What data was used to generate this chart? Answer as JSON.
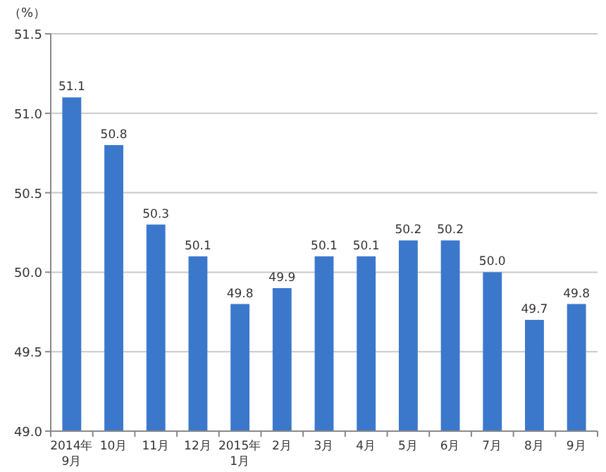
{
  "chart_data": {
    "type": "bar",
    "ylabel": "（%）",
    "categories": [
      "2014年\n9月",
      "10月",
      "11月",
      "12月",
      "2015年\n1月",
      "2月",
      "3月",
      "4月",
      "5月",
      "6月",
      "7月",
      "8月",
      "9月"
    ],
    "values": [
      51.1,
      50.8,
      50.3,
      50.1,
      49.8,
      49.9,
      50.1,
      50.1,
      50.2,
      50.2,
      50.0,
      49.7,
      49.8
    ],
    "value_labels": [
      "51.1",
      "50.8",
      "50.3",
      "50.1",
      "49.8",
      "49.9",
      "50.1",
      "50.1",
      "50.2",
      "50.2",
      "50.0",
      "49.7",
      "49.8"
    ],
    "color": "#3b78cc",
    "ylim": [
      49.0,
      51.5
    ],
    "yticks": [
      {
        "value": 49.0,
        "label": "49.0"
      },
      {
        "value": 49.5,
        "label": "49.5"
      },
      {
        "value": 50.0,
        "label": "50.0"
      },
      {
        "value": 50.5,
        "label": "50.5"
      },
      {
        "value": 51.0,
        "label": "51.0"
      },
      {
        "value": 51.5,
        "label": "51.5"
      }
    ],
    "grid": "y"
  }
}
